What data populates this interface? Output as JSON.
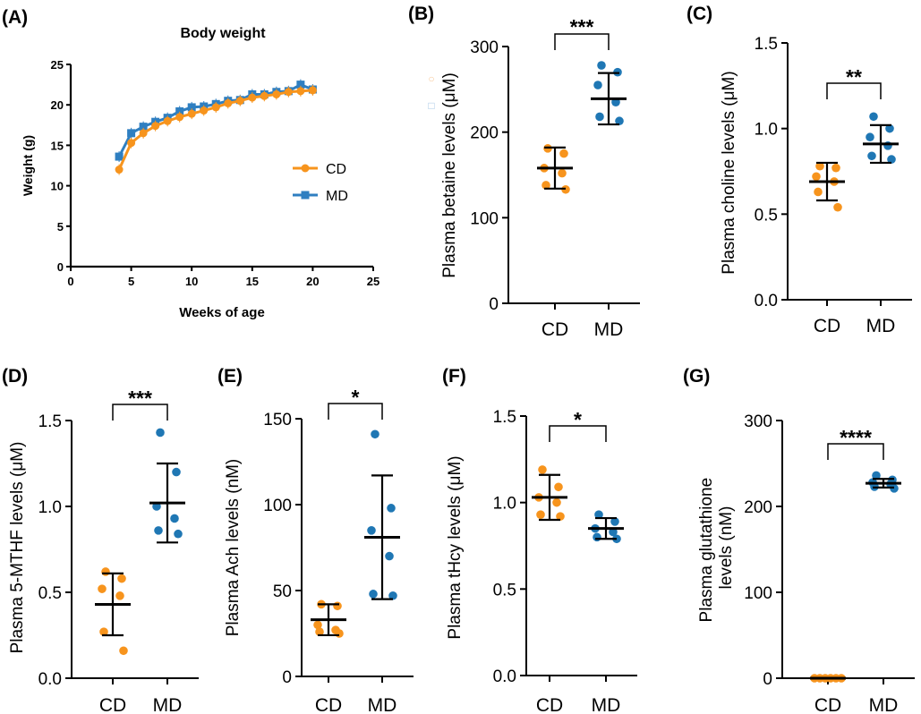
{
  "colors": {
    "cd": "#F7941D",
    "md": "#1F77B4",
    "md_line": "#2F7FC1",
    "axis": "#000000"
  },
  "chart_data": [
    {
      "id": "A",
      "panel_label": "(A)",
      "type": "line",
      "title": "Body weight",
      "xlabel": "Weeks of age",
      "ylabel": "Weight (g)",
      "xlim": [
        0,
        25
      ],
      "ylim": [
        0,
        25
      ],
      "xticks": [
        "0",
        "5",
        "10",
        "15",
        "20",
        "25"
      ],
      "yticks": [
        "0",
        "5",
        "10",
        "15",
        "20",
        "25"
      ],
      "x": [
        4,
        5,
        6,
        7,
        8,
        9,
        10,
        11,
        12,
        13,
        14,
        15,
        16,
        17,
        18,
        19,
        20
      ],
      "series": [
        {
          "name": "CD",
          "marker": "circle",
          "values": [
            12.0,
            15.3,
            16.5,
            17.4,
            18.0,
            18.5,
            18.9,
            19.3,
            19.7,
            20.2,
            20.5,
            20.9,
            21.1,
            21.3,
            21.6,
            21.7,
            21.8
          ]
        },
        {
          "name": "MD",
          "marker": "square",
          "values": [
            13.6,
            16.5,
            17.3,
            17.9,
            18.4,
            19.2,
            19.7,
            19.8,
            20.1,
            20.5,
            20.6,
            21.3,
            21.3,
            21.6,
            21.7,
            22.5,
            21.9
          ]
        }
      ]
    },
    {
      "id": "B",
      "panel_label": "(B)",
      "type": "scatter",
      "ylabel": "Plasma betaine levels (μM)",
      "ylim": [
        0,
        300
      ],
      "yticks": [
        "0",
        "100",
        "200",
        "300"
      ],
      "categories": [
        "CD",
        "MD"
      ],
      "series": [
        {
          "name": "CD",
          "values": [
            181,
            175,
            158,
            152,
            138,
            133
          ],
          "mean": 158,
          "sd": 24
        },
        {
          "name": "MD",
          "values": [
            278,
            270,
            255,
            235,
            218,
            213
          ],
          "mean": 239,
          "sd": 30
        }
      ],
      "significance": "***"
    },
    {
      "id": "C",
      "panel_label": "(C)",
      "type": "scatter",
      "ylabel": "Plasma choline levels (μM)",
      "ylim": [
        0,
        1.5
      ],
      "yticks": [
        "0.0",
        "0.5",
        "1.0",
        "1.5"
      ],
      "categories": [
        "CD",
        "MD"
      ],
      "series": [
        {
          "name": "CD",
          "values": [
            0.78,
            0.77,
            0.72,
            0.69,
            0.63,
            0.54
          ],
          "mean": 0.69,
          "sd": 0.11
        },
        {
          "name": "MD",
          "values": [
            1.07,
            1.0,
            0.95,
            0.9,
            0.84,
            0.82
          ],
          "mean": 0.91,
          "sd": 0.11
        }
      ],
      "significance": "**"
    },
    {
      "id": "D",
      "panel_label": "(D)",
      "type": "scatter",
      "ylabel": "Plasma 5-MTHF levels (μM)",
      "ylim": [
        0,
        1.5
      ],
      "yticks": [
        "0.0",
        "0.5",
        "1.0",
        "1.5"
      ],
      "categories": [
        "CD",
        "MD"
      ],
      "series": [
        {
          "name": "CD",
          "values": [
            0.62,
            0.58,
            0.52,
            0.48,
            0.27,
            0.16
          ],
          "mean": 0.43,
          "sd": 0.18
        },
        {
          "name": "MD",
          "values": [
            1.43,
            1.2,
            1.0,
            0.93,
            0.86,
            0.84
          ],
          "mean": 1.02,
          "sd": 0.23
        }
      ],
      "significance": "***"
    },
    {
      "id": "E",
      "panel_label": "(E)",
      "type": "scatter",
      "ylabel": "Plasma Ach levels (nM)",
      "ylim": [
        0,
        150
      ],
      "yticks": [
        "0",
        "50",
        "100",
        "150"
      ],
      "categories": [
        "CD",
        "MD"
      ],
      "series": [
        {
          "name": "CD",
          "values": [
            42,
            41,
            30,
            27,
            26,
            25
          ],
          "mean": 33,
          "sd": 9
        },
        {
          "name": "MD",
          "values": [
            141,
            98,
            85,
            70,
            48,
            47
          ],
          "mean": 81,
          "sd": 36
        }
      ],
      "significance": "*"
    },
    {
      "id": "F",
      "panel_label": "(F)",
      "type": "scatter",
      "ylabel": "Plasma tHcy levels (μM)",
      "ylim": [
        0,
        1.5
      ],
      "yticks": [
        "0.0",
        "0.5",
        "1.0",
        "1.5"
      ],
      "categories": [
        "CD",
        "MD"
      ],
      "series": [
        {
          "name": "CD",
          "values": [
            1.19,
            1.09,
            1.03,
            1.0,
            0.93,
            0.92
          ],
          "mean": 1.03,
          "sd": 0.13
        },
        {
          "name": "MD",
          "values": [
            0.93,
            0.89,
            0.85,
            0.83,
            0.8,
            0.79
          ],
          "mean": 0.85,
          "sd": 0.06
        }
      ],
      "significance": "*"
    },
    {
      "id": "G",
      "panel_label": "(G)",
      "type": "scatter",
      "ylabel": "Plasma glutathione levels (nM)",
      "ylabel_lines": [
        "Plasma glutathione",
        "levels (nM)"
      ],
      "ylim": [
        0,
        300
      ],
      "yticks": [
        "0",
        "100",
        "200",
        "300"
      ],
      "categories": [
        "CD",
        "MD"
      ],
      "series": [
        {
          "name": "CD",
          "values": [
            0,
            0,
            0,
            0,
            0,
            0
          ],
          "mean": 0,
          "sd": 0
        },
        {
          "name": "MD",
          "values": [
            236,
            231,
            228,
            226,
            223,
            221
          ],
          "mean": 227,
          "sd": 5
        }
      ],
      "significance": "****"
    }
  ]
}
